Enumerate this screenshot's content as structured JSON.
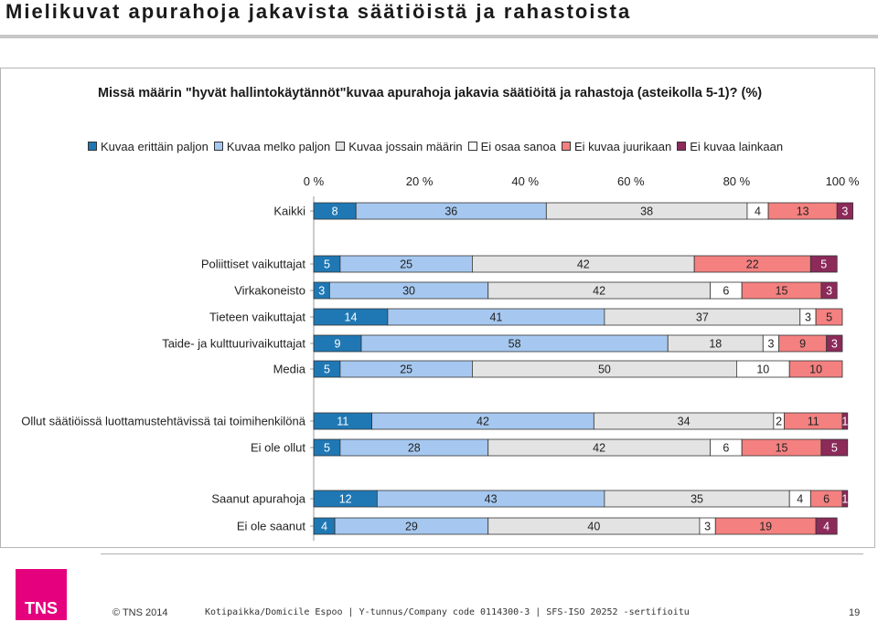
{
  "slide": {
    "title": "Mielikuvat apurahoja jakavista säätiöistä ja rahastoista"
  },
  "footer": {
    "logo_text": "TNS",
    "copyright": "© TNS 2014",
    "company": "Kotipaikka/Domicile Espoo | Y-tunnus/Company code 0114300-3 | SFS-ISO 20252 -sertifioitu",
    "page_number": "19"
  },
  "colors": {
    "background": "#ffffff",
    "title_rule": "#c7c7c7",
    "logo": "#e5007d"
  },
  "chart_data": {
    "type": "bar",
    "orientation": "horizontal-stacked-100",
    "title": "Missä määrin \"hyvät hallintokäytännöt\"kuvaa apurahoja jakavia säätiöitä ja rahastoja (asteikolla 5-1)? (%)",
    "xlim": [
      0,
      100
    ],
    "x_ticks": [
      "0 %",
      "20 %",
      "40 %",
      "60 %",
      "80 %",
      "100 %"
    ],
    "legend_position": "top",
    "series": [
      {
        "name": "Kuvaa erittäin paljon",
        "color": "#1f78b4"
      },
      {
        "name": "Kuvaa melko paljon",
        "color": "#a6c8f0"
      },
      {
        "name": "Kuvaa jossain määrin",
        "color": "#e3e3e3"
      },
      {
        "name": "Ei osaa sanoa",
        "color": "#ffffff"
      },
      {
        "name": "Ei kuvaa juurikaan",
        "color": "#f48080"
      },
      {
        "name": "Ei kuvaa lainkaan",
        "color": "#8c2a5a"
      }
    ],
    "categories": [
      {
        "label": "Kaikki",
        "values": [
          8,
          36,
          38,
          4,
          13,
          3
        ],
        "labels": [
          "8",
          "36",
          "38",
          "4",
          "13",
          "3"
        ]
      },
      {
        "label": "Poliittiset vaikuttajat",
        "values": [
          5,
          25,
          42,
          0,
          22,
          5
        ],
        "labels": [
          "5",
          "25",
          "42",
          "",
          "22",
          "5"
        ]
      },
      {
        "label": "Virkakoneisto",
        "values": [
          3,
          30,
          42,
          6,
          15,
          3
        ],
        "labels": [
          "3",
          "30",
          "42",
          "6",
          "15",
          "3"
        ]
      },
      {
        "label": "Tieteen vaikuttajat",
        "values": [
          14,
          41,
          37,
          3,
          5,
          0
        ],
        "labels": [
          "14",
          "41",
          "37",
          "3",
          "5",
          ""
        ]
      },
      {
        "label": "Taide- ja kulttuurivaikuttajat",
        "values": [
          9,
          58,
          18,
          3,
          9,
          3
        ],
        "labels": [
          "9",
          "58",
          "18",
          "3",
          "9",
          "3"
        ]
      },
      {
        "label": "Media",
        "values": [
          5,
          25,
          50,
          10,
          10,
          0
        ],
        "labels": [
          "5",
          "25",
          "50",
          "10",
          "10",
          ""
        ]
      },
      {
        "label": "Ollut säätiöissä luottamustehtävissä tai toimihenkilönä",
        "values": [
          11,
          42,
          34,
          2,
          11,
          1
        ],
        "labels": [
          "11",
          "42",
          "34",
          "2",
          "11",
          "1"
        ]
      },
      {
        "label": "Ei ole ollut",
        "values": [
          5,
          28,
          42,
          6,
          15,
          5
        ],
        "labels": [
          "5",
          "28",
          "42",
          "6",
          "15",
          "5"
        ]
      },
      {
        "label": "Saanut apurahoja",
        "values": [
          12,
          43,
          35,
          4,
          6,
          1
        ],
        "labels": [
          "12",
          "43",
          "35",
          "4",
          "6",
          "1"
        ]
      },
      {
        "label": "Ei ole saanut",
        "values": [
          4,
          29,
          40,
          3,
          19,
          4
        ],
        "labels": [
          "4",
          "29",
          "40",
          "3",
          "19",
          "4"
        ]
      }
    ]
  }
}
